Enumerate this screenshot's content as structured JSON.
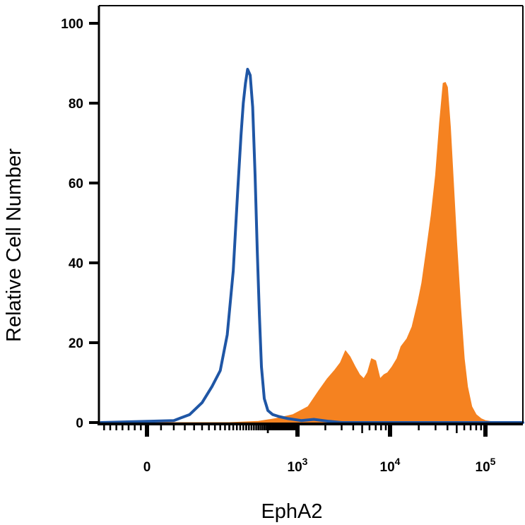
{
  "chart_data": {
    "type": "area",
    "title": "",
    "xlabel": "EphA2",
    "ylabel": "Relative Cell Number",
    "x_scale": "biexponential",
    "xlim": [
      -150,
      180000
    ],
    "ylim": [
      0,
      105
    ],
    "y_ticks": [
      0,
      20,
      40,
      60,
      80,
      100
    ],
    "x_ticks": [
      {
        "value": 0,
        "label": "0",
        "exp": ""
      },
      {
        "value": 1000,
        "label": "10",
        "exp": "3"
      },
      {
        "value": 10000,
        "label": "10",
        "exp": "4"
      },
      {
        "value": 100000,
        "label": "10",
        "exp": "5"
      }
    ],
    "series": [
      {
        "style": "outline",
        "color": "#1f56a5",
        "x": [
          -150,
          40,
          70,
          100,
          130,
          160,
          190,
          220,
          245,
          265,
          280,
          295,
          310,
          330,
          350,
          370,
          390,
          410,
          430,
          460,
          500,
          560,
          650,
          800,
          1100,
          1500,
          2200,
          3000,
          5000,
          10000,
          50000,
          180000
        ],
        "y": [
          0,
          0.5,
          2,
          5,
          9,
          13,
          22,
          38,
          58,
          72,
          80,
          85,
          88.5,
          87,
          79,
          62,
          43,
          27,
          14,
          6,
          3,
          2,
          1.5,
          1,
          0.5,
          0.8,
          0.3,
          0,
          0,
          0,
          0,
          0
        ]
      },
      {
        "style": "filled",
        "color": "#f58220",
        "x": [
          -150,
          200,
          400,
          600,
          900,
          1300,
          1700,
          2100,
          2500,
          2900,
          3300,
          3700,
          4200,
          4700,
          5200,
          5700,
          6300,
          7000,
          7800,
          8600,
          9400,
          10500,
          11800,
          13000,
          15000,
          17000,
          19500,
          21500,
          24000,
          27000,
          30000,
          33000,
          36000,
          38000,
          40000,
          43000,
          46000,
          50000,
          55000,
          60000,
          65000,
          72000,
          80000,
          90000,
          100000,
          120000,
          150000,
          180000
        ],
        "y": [
          0,
          0,
          0.3,
          1,
          2,
          4,
          8,
          11,
          13,
          15,
          18,
          16.5,
          14,
          12,
          11,
          12.5,
          16,
          15.5,
          11,
          12,
          12.5,
          14,
          16,
          19,
          21,
          24,
          30,
          35,
          43,
          52,
          62,
          75,
          85,
          85.2,
          84,
          74,
          61,
          45,
          29,
          16,
          9,
          4,
          2,
          1,
          0.5,
          0,
          0,
          0
        ]
      }
    ]
  }
}
